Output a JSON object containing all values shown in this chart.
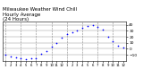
{
  "title": "Milwaukee Weather Wind Chill\nHourly Average\n(24 Hours)",
  "title_fontsize": 4.0,
  "dot_color": "#0000ff",
  "dot_size": 1.5,
  "background_color": "#ffffff",
  "grid_color": "#888888",
  "hours": [
    0,
    1,
    2,
    3,
    4,
    5,
    6,
    7,
    8,
    9,
    10,
    11,
    12,
    13,
    14,
    15,
    16,
    17,
    18,
    19,
    20,
    21,
    22,
    23
  ],
  "wind_chill": [
    -10,
    -12,
    -14,
    -15,
    -17,
    -16,
    -15,
    -9,
    -4,
    3,
    10,
    18,
    24,
    27,
    30,
    35,
    38,
    40,
    36,
    32,
    20,
    12,
    5,
    2
  ],
  "ylim": [
    -20,
    45
  ],
  "ytick_values": [
    -10,
    0,
    10,
    20,
    30,
    40
  ],
  "ytick_fontsize": 3.2,
  "xtick_fontsize": 2.8,
  "xtick_labels": [
    "1",
    "2",
    "3",
    "4",
    "5",
    "6",
    "7",
    "8",
    "9",
    "10",
    "11",
    "12",
    "1",
    "2",
    "3",
    "4",
    "5",
    "6",
    "7",
    "8",
    "9",
    "10",
    "11",
    "12"
  ],
  "vgrid_positions": [
    0,
    3,
    6,
    9,
    12,
    15,
    18,
    21
  ],
  "figsize": [
    1.6,
    0.87
  ],
  "dpi": 100
}
